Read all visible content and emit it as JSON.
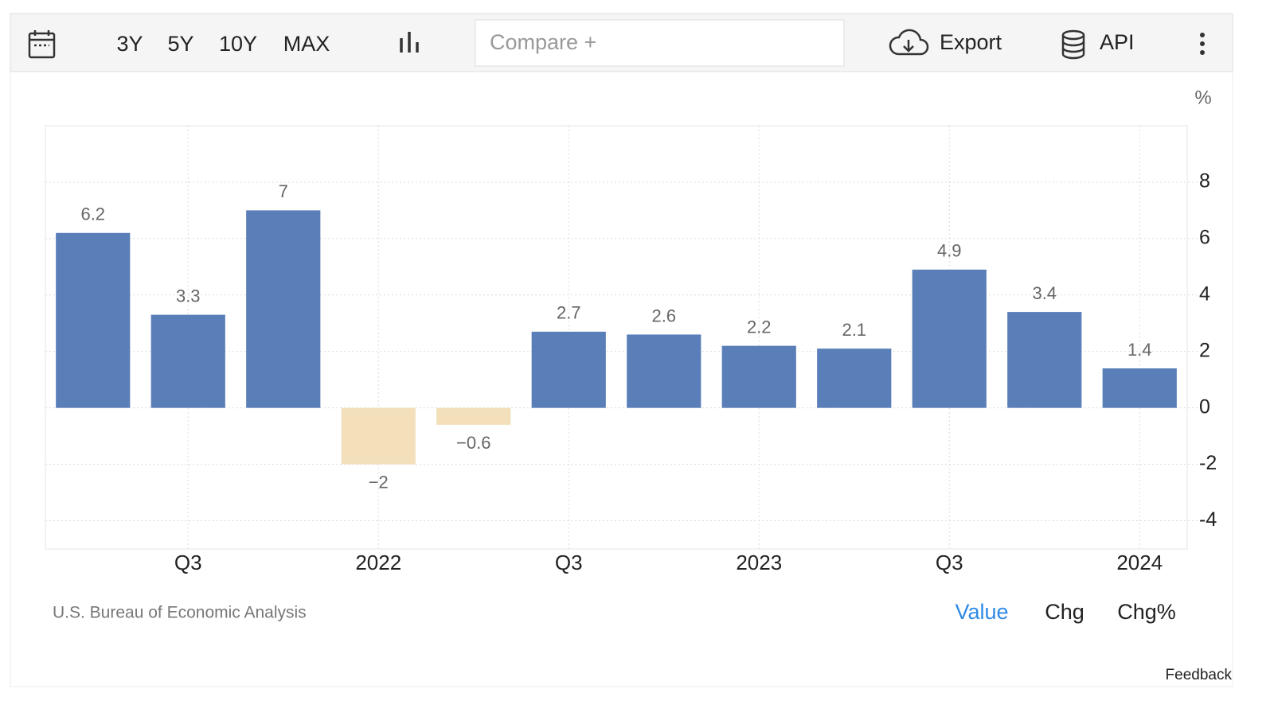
{
  "toolbar": {
    "ranges": [
      "3Y",
      "5Y",
      "10Y",
      "MAX"
    ],
    "compare_placeholder": "Compare +",
    "export": "Export",
    "api": "API"
  },
  "chart_data": {
    "type": "bar",
    "unit": "%",
    "categories": [
      null,
      "Q3",
      null,
      "2022",
      null,
      "Q3",
      null,
      "2023",
      null,
      "Q3",
      null,
      "2024"
    ],
    "values": [
      6.2,
      3.3,
      7,
      -2,
      -0.6,
      2.7,
      2.6,
      2.2,
      2.1,
      4.9,
      3.4,
      1.4
    ],
    "value_labels": [
      "6.2",
      "3.3",
      "7",
      "−2",
      "−0.6",
      "2.7",
      "2.6",
      "2.2",
      "2.1",
      "4.9",
      "3.4",
      "1.4"
    ],
    "color": "#5a7fb8",
    "negative_color": "#f3e0bb",
    "ylim": [
      -5,
      10
    ],
    "yticks": [
      -4,
      -2,
      0,
      2,
      4,
      6,
      8
    ],
    "grid": true
  },
  "source": "U.S. Bureau of Economic Analysis",
  "tabs": [
    "Value",
    "Chg",
    "Chg%"
  ],
  "active_tab": 0,
  "feedback": "Feedback"
}
